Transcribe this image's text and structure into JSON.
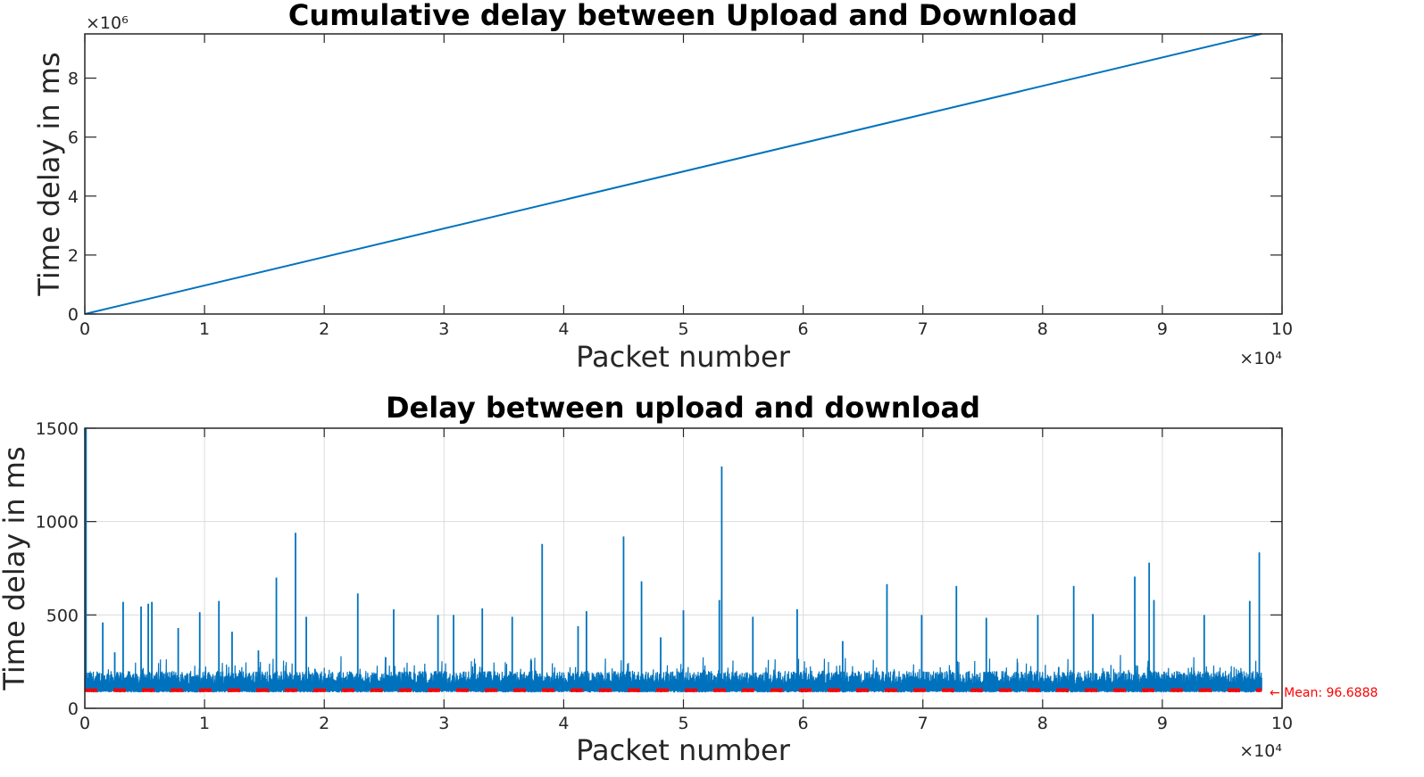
{
  "chart_data": [
    {
      "type": "line",
      "title": "Cumulative delay between Upload and Download",
      "xlabel": "Packet number",
      "ylabel": "Time delay in ms",
      "xlim": [
        0,
        100000
      ],
      "ylim": [
        0,
        9500000
      ],
      "x_exponent_label": "×10⁴",
      "y_exponent_label": "×10⁶",
      "x_ticks": [
        0,
        10000,
        20000,
        30000,
        40000,
        50000,
        60000,
        70000,
        80000,
        90000,
        100000
      ],
      "x_tick_labels": [
        "0",
        "1",
        "2",
        "3",
        "4",
        "5",
        "6",
        "7",
        "8",
        "9",
        "10"
      ],
      "y_ticks": [
        0,
        2000000,
        4000000,
        6000000,
        8000000
      ],
      "y_tick_labels": [
        "0",
        "2",
        "4",
        "6",
        "8"
      ],
      "grid": false,
      "color": "#0072bd",
      "series": [
        {
          "x": [
            0,
            98300
          ],
          "y": [
            0,
            9504000
          ]
        }
      ]
    },
    {
      "type": "line",
      "title": "Delay between upload and download",
      "xlabel": "Packet number",
      "ylabel": "Time delay in ms",
      "xlim": [
        0,
        100000
      ],
      "ylim": [
        0,
        1500
      ],
      "x_exponent_label": "×10⁴",
      "x_ticks": [
        0,
        10000,
        20000,
        30000,
        40000,
        50000,
        60000,
        70000,
        80000,
        90000,
        100000
      ],
      "x_tick_labels": [
        "0",
        "1",
        "2",
        "3",
        "4",
        "5",
        "6",
        "7",
        "8",
        "9",
        "10"
      ],
      "y_ticks": [
        0,
        500,
        1000,
        1500
      ],
      "y_tick_labels": [
        "0",
        "500",
        "1000",
        "1500"
      ],
      "grid": true,
      "color": "#0072bd",
      "mean_color": "#ff0000",
      "mean_value": 96.6888,
      "mean_label": "← Mean: 96.6888",
      "x_end": 98300,
      "spikes": [
        [
          100,
          1500
        ],
        [
          1500,
          460
        ],
        [
          2500,
          300
        ],
        [
          3200,
          570
        ],
        [
          4700,
          545
        ],
        [
          5300,
          560
        ],
        [
          5600,
          570
        ],
        [
          7800,
          430
        ],
        [
          9600,
          515
        ],
        [
          11200,
          575
        ],
        [
          12300,
          410
        ],
        [
          14500,
          310
        ],
        [
          16000,
          700
        ],
        [
          17600,
          940
        ],
        [
          18500,
          490
        ],
        [
          22800,
          615
        ],
        [
          25800,
          530
        ],
        [
          29500,
          500
        ],
        [
          30800,
          500
        ],
        [
          33200,
          535
        ],
        [
          35700,
          490
        ],
        [
          38200,
          880
        ],
        [
          41200,
          440
        ],
        [
          41900,
          520
        ],
        [
          45000,
          920
        ],
        [
          46500,
          680
        ],
        [
          48100,
          380
        ],
        [
          50000,
          525
        ],
        [
          53000,
          580
        ],
        [
          53200,
          1295
        ],
        [
          55800,
          490
        ],
        [
          59500,
          530
        ],
        [
          63300,
          360
        ],
        [
          67000,
          665
        ],
        [
          69900,
          500
        ],
        [
          72800,
          655
        ],
        [
          75300,
          485
        ],
        [
          79600,
          500
        ],
        [
          82600,
          655
        ],
        [
          84200,
          505
        ],
        [
          87700,
          705
        ],
        [
          88900,
          780
        ],
        [
          89300,
          580
        ],
        [
          93500,
          500
        ],
        [
          97300,
          575
        ],
        [
          98100,
          835
        ]
      ]
    }
  ]
}
